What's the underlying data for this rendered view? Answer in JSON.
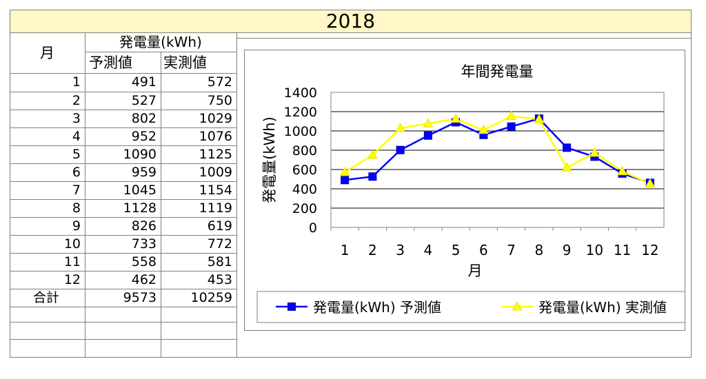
{
  "sheet": {
    "title": "2018",
    "header": {
      "month": "月",
      "group": "発電量(kWh)",
      "predicted": "予測値",
      "actual": "実測値"
    },
    "rows": [
      {
        "month": "1",
        "predicted": "491",
        "actual": "572"
      },
      {
        "month": "2",
        "predicted": "527",
        "actual": "750"
      },
      {
        "month": "3",
        "predicted": "802",
        "actual": "1029"
      },
      {
        "month": "4",
        "predicted": "952",
        "actual": "1076"
      },
      {
        "month": "5",
        "predicted": "1090",
        "actual": "1125"
      },
      {
        "month": "6",
        "predicted": "959",
        "actual": "1009"
      },
      {
        "month": "7",
        "predicted": "1045",
        "actual": "1154"
      },
      {
        "month": "8",
        "predicted": "1128",
        "actual": "1119"
      },
      {
        "month": "9",
        "predicted": "826",
        "actual": "619"
      },
      {
        "month": "10",
        "predicted": "733",
        "actual": "772"
      },
      {
        "month": "11",
        "predicted": "558",
        "actual": "581"
      },
      {
        "month": "12",
        "predicted": "462",
        "actual": "453"
      }
    ],
    "total": {
      "label": "合計",
      "predicted": "9573",
      "actual": "10259"
    }
  },
  "colors": {
    "title_bg": "#fff7c6",
    "series_predicted": "#0000ff",
    "series_actual": "#ffff00"
  },
  "chart_data": {
    "type": "line",
    "title": "年間発電量",
    "xlabel": "月",
    "ylabel": "発電量(kWh)",
    "ylim": [
      0,
      1400
    ],
    "yticks": [
      0,
      200,
      400,
      600,
      800,
      1000,
      1200,
      1400
    ],
    "categories": [
      "1",
      "2",
      "3",
      "4",
      "5",
      "6",
      "7",
      "8",
      "9",
      "10",
      "11",
      "12"
    ],
    "grid": true,
    "legend_position": "bottom",
    "series": [
      {
        "name": "発電量(kWh) 予測値",
        "marker": "square",
        "color": "#0000ff",
        "values": [
          491,
          527,
          802,
          952,
          1090,
          959,
          1045,
          1128,
          826,
          733,
          558,
          462
        ]
      },
      {
        "name": "発電量(kWh) 実測値",
        "marker": "triangle",
        "color": "#ffff00",
        "values": [
          572,
          750,
          1029,
          1076,
          1125,
          1009,
          1154,
          1119,
          619,
          772,
          581,
          453
        ]
      }
    ]
  }
}
